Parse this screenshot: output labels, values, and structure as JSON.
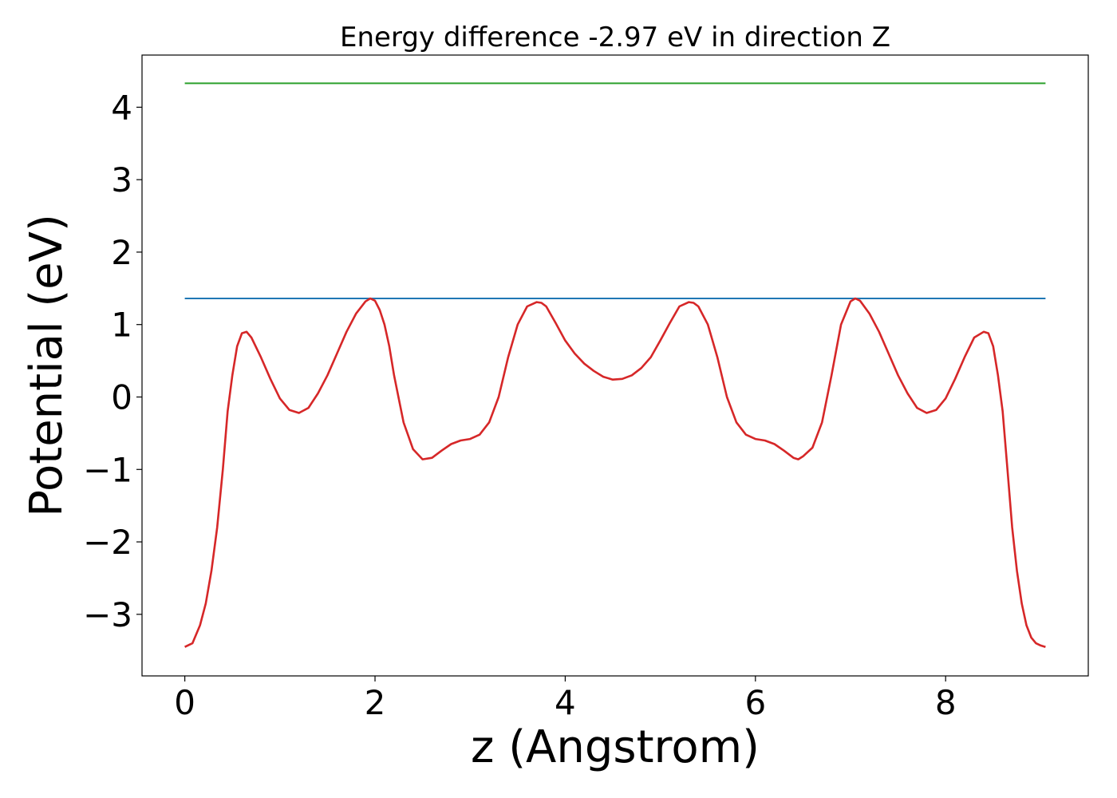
{
  "chart_data": {
    "type": "line",
    "title": "Energy difference -2.97 eV in direction Z",
    "xlabel": "z (Angstrom)",
    "ylabel": "Potential (eV)",
    "xlim": [
      -0.45,
      9.5
    ],
    "ylim": [
      -3.85,
      4.72
    ],
    "xticks": [
      0,
      2,
      4,
      6,
      8
    ],
    "yticks": [
      -3,
      -2,
      -1,
      0,
      1,
      2,
      3,
      4
    ],
    "grid": false,
    "series": [
      {
        "color": "#2ca02c",
        "x": [
          0,
          9.05
        ],
        "y": [
          4.33,
          4.33
        ]
      },
      {
        "color": "#1f77b4",
        "x": [
          0,
          9.05
        ],
        "y": [
          1.36,
          1.36
        ]
      },
      {
        "color": "#d62728",
        "x": [
          0,
          0.08,
          0.16,
          0.22,
          0.28,
          0.34,
          0.4,
          0.45,
          0.5,
          0.55,
          0.6,
          0.65,
          0.7,
          0.8,
          0.9,
          1.0,
          1.1,
          1.2,
          1.3,
          1.4,
          1.5,
          1.6,
          1.7,
          1.8,
          1.9,
          1.95,
          2.0,
          2.05,
          2.1,
          2.15,
          2.2,
          2.3,
          2.4,
          2.5,
          2.6,
          2.7,
          2.8,
          2.9,
          3.0,
          3.1,
          3.2,
          3.3,
          3.4,
          3.5,
          3.6,
          3.7,
          3.75,
          3.8,
          3.9,
          4.0,
          4.1,
          4.2,
          4.3,
          4.4,
          4.5,
          4.6,
          4.7,
          4.8,
          4.9,
          5.0,
          5.1,
          5.2,
          5.3,
          5.35,
          5.4,
          5.5,
          5.6,
          5.7,
          5.8,
          5.9,
          6.0,
          6.1,
          6.2,
          6.3,
          6.4,
          6.45,
          6.5,
          6.6,
          6.7,
          6.8,
          6.9,
          7.0,
          7.05,
          7.1,
          7.2,
          7.3,
          7.4,
          7.5,
          7.6,
          7.7,
          7.8,
          7.9,
          8.0,
          8.1,
          8.2,
          8.3,
          8.4,
          8.45,
          8.5,
          8.55,
          8.6,
          8.65,
          8.7,
          8.75,
          8.8,
          8.85,
          8.9,
          8.95,
          9.0,
          9.05
        ],
        "y": [
          -3.45,
          -3.4,
          -3.15,
          -2.85,
          -2.4,
          -1.8,
          -1.0,
          -0.2,
          0.3,
          0.7,
          0.88,
          0.9,
          0.82,
          0.55,
          0.25,
          -0.02,
          -0.18,
          -0.22,
          -0.15,
          0.05,
          0.3,
          0.6,
          0.9,
          1.15,
          1.32,
          1.36,
          1.33,
          1.2,
          1.0,
          0.7,
          0.3,
          -0.35,
          -0.72,
          -0.86,
          -0.84,
          -0.74,
          -0.65,
          -0.6,
          -0.58,
          -0.52,
          -0.35,
          0.0,
          0.55,
          1.0,
          1.25,
          1.31,
          1.3,
          1.25,
          1.02,
          0.78,
          0.6,
          0.46,
          0.36,
          0.28,
          0.24,
          0.25,
          0.3,
          0.4,
          0.55,
          0.78,
          1.02,
          1.25,
          1.31,
          1.3,
          1.25,
          1.0,
          0.55,
          0.0,
          -0.35,
          -0.52,
          -0.58,
          -0.6,
          -0.65,
          -0.74,
          -0.84,
          -0.86,
          -0.82,
          -0.7,
          -0.35,
          0.3,
          1.0,
          1.32,
          1.36,
          1.33,
          1.15,
          0.9,
          0.6,
          0.3,
          0.05,
          -0.15,
          -0.22,
          -0.18,
          -0.02,
          0.25,
          0.55,
          0.82,
          0.9,
          0.88,
          0.7,
          0.3,
          -0.2,
          -1.0,
          -1.8,
          -2.4,
          -2.85,
          -3.15,
          -3.32,
          -3.4,
          -3.43,
          -3.45
        ]
      }
    ]
  }
}
